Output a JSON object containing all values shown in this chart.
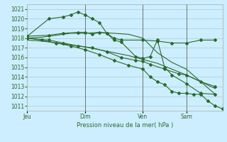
{
  "background_color": "#cceeff",
  "grid_color": "#aacccc",
  "line_color": "#2d6a2d",
  "marker_color": "#2d6a2d",
  "xlabel": "Pression niveau de la mer( hPa )",
  "ylim": [
    1010.5,
    1021.5
  ],
  "yticks": [
    1011,
    1012,
    1013,
    1014,
    1015,
    1016,
    1017,
    1018,
    1019,
    1020,
    1021
  ],
  "xtick_labels": [
    "Jeu",
    "Dim",
    "Ven",
    "Sam"
  ],
  "xtick_positions": [
    0,
    8,
    16,
    22
  ],
  "xlim": [
    0,
    27
  ],
  "vlines": [
    8,
    16,
    22
  ],
  "series": [
    {
      "x": [
        0,
        3,
        5,
        6,
        7,
        8,
        9,
        10,
        11,
        12,
        13,
        16,
        18,
        20,
        22,
        24,
        26
      ],
      "y": [
        1018.2,
        1020.0,
        1020.2,
        1020.4,
        1020.7,
        1020.4,
        1020.0,
        1019.6,
        1018.5,
        1018.0,
        1017.8,
        1017.8,
        1017.7,
        1017.5,
        1017.5,
        1017.8,
        1017.8
      ],
      "has_markers": true
    },
    {
      "x": [
        0,
        3,
        5,
        7,
        8,
        9,
        10,
        11,
        12,
        13,
        15,
        16,
        17,
        18,
        19,
        20,
        22,
        24,
        26
      ],
      "y": [
        1018.2,
        1018.3,
        1018.5,
        1018.6,
        1018.6,
        1018.4,
        1018.6,
        1018.5,
        1017.8,
        1017.6,
        1016.1,
        1015.9,
        1016.1,
        1017.8,
        1015.0,
        1014.2,
        1013.3,
        1012.3,
        1012.2
      ],
      "has_markers": true
    },
    {
      "x": [
        0,
        3,
        5,
        7,
        9,
        11,
        13,
        15,
        16,
        17,
        19,
        21,
        22,
        24,
        26
      ],
      "y": [
        1018.0,
        1017.8,
        1017.5,
        1017.2,
        1017.0,
        1016.6,
        1016.0,
        1015.7,
        1015.6,
        1015.3,
        1014.8,
        1014.3,
        1014.2,
        1013.5,
        1013.0
      ],
      "has_markers": true
    },
    {
      "x": [
        0,
        2,
        4,
        6,
        8,
        10,
        12,
        14,
        16,
        17,
        18,
        19,
        20,
        21,
        22,
        23,
        24,
        25,
        26,
        27
      ],
      "y": [
        1018.0,
        1017.8,
        1017.5,
        1017.2,
        1016.8,
        1016.3,
        1015.7,
        1015.2,
        1014.8,
        1014.0,
        1013.5,
        1013.2,
        1012.5,
        1012.3,
        1012.3,
        1012.2,
        1012.2,
        1011.5,
        1011.0,
        1010.7
      ],
      "has_markers": true
    },
    {
      "x": [
        0,
        2,
        4,
        6,
        8,
        10,
        12,
        14,
        16,
        18,
        20,
        22,
        24,
        26
      ],
      "y": [
        1018.0,
        1018.1,
        1018.3,
        1018.5,
        1018.5,
        1018.6,
        1018.5,
        1018.4,
        1018.0,
        1016.5,
        1015.5,
        1014.8,
        1013.5,
        1012.2
      ],
      "has_markers": false
    },
    {
      "x": [
        0,
        2,
        4,
        6,
        8,
        10,
        12,
        14,
        16,
        18,
        20,
        22,
        24,
        26
      ],
      "y": [
        1017.8,
        1017.7,
        1017.5,
        1017.3,
        1017.1,
        1016.8,
        1016.5,
        1016.2,
        1015.8,
        1015.4,
        1014.8,
        1014.2,
        1013.5,
        1012.8
      ],
      "has_markers": false
    }
  ]
}
